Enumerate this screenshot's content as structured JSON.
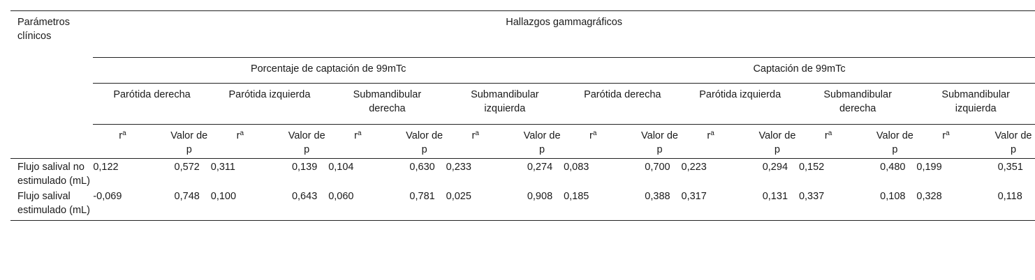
{
  "header": {
    "param_label": "Parámetros clínicos",
    "main_title": "Hallazgos gammagráficos",
    "groups": [
      "Porcentaje de captación de 99mTc",
      "Captación de 99mTc"
    ],
    "organs": [
      "Parótida derecha",
      "Parótida izquierda",
      "Submandibular derecha",
      "Submandibular izquierda",
      "Parótida derecha",
      "Parótida izquierda",
      "Submandibular derecha",
      "Submandibular izquierda"
    ],
    "r_label": "r",
    "r_sup": "a",
    "p_label": "Valor de p"
  },
  "rows": [
    {
      "label": "Flujo salival no estimulado (mL)",
      "values": [
        "0,122",
        "0,572",
        "0,311",
        "0,139",
        "0,104",
        "0,630",
        "0,233",
        "0,274",
        "0,083",
        "0,700",
        "0,223",
        "0,294",
        "0,152",
        "0,480",
        "0,199",
        "0,351"
      ]
    },
    {
      "label": "Flujo salival estimulado (mL)",
      "values": [
        "-0,069",
        "0,748",
        "0,100",
        "0,643",
        "0,060",
        "0,781",
        "0,025",
        "0,908",
        "0,185",
        "0,388",
        "0,317",
        "0,131",
        "0,337",
        "0,108",
        "0,328",
        "0,118"
      ]
    }
  ]
}
